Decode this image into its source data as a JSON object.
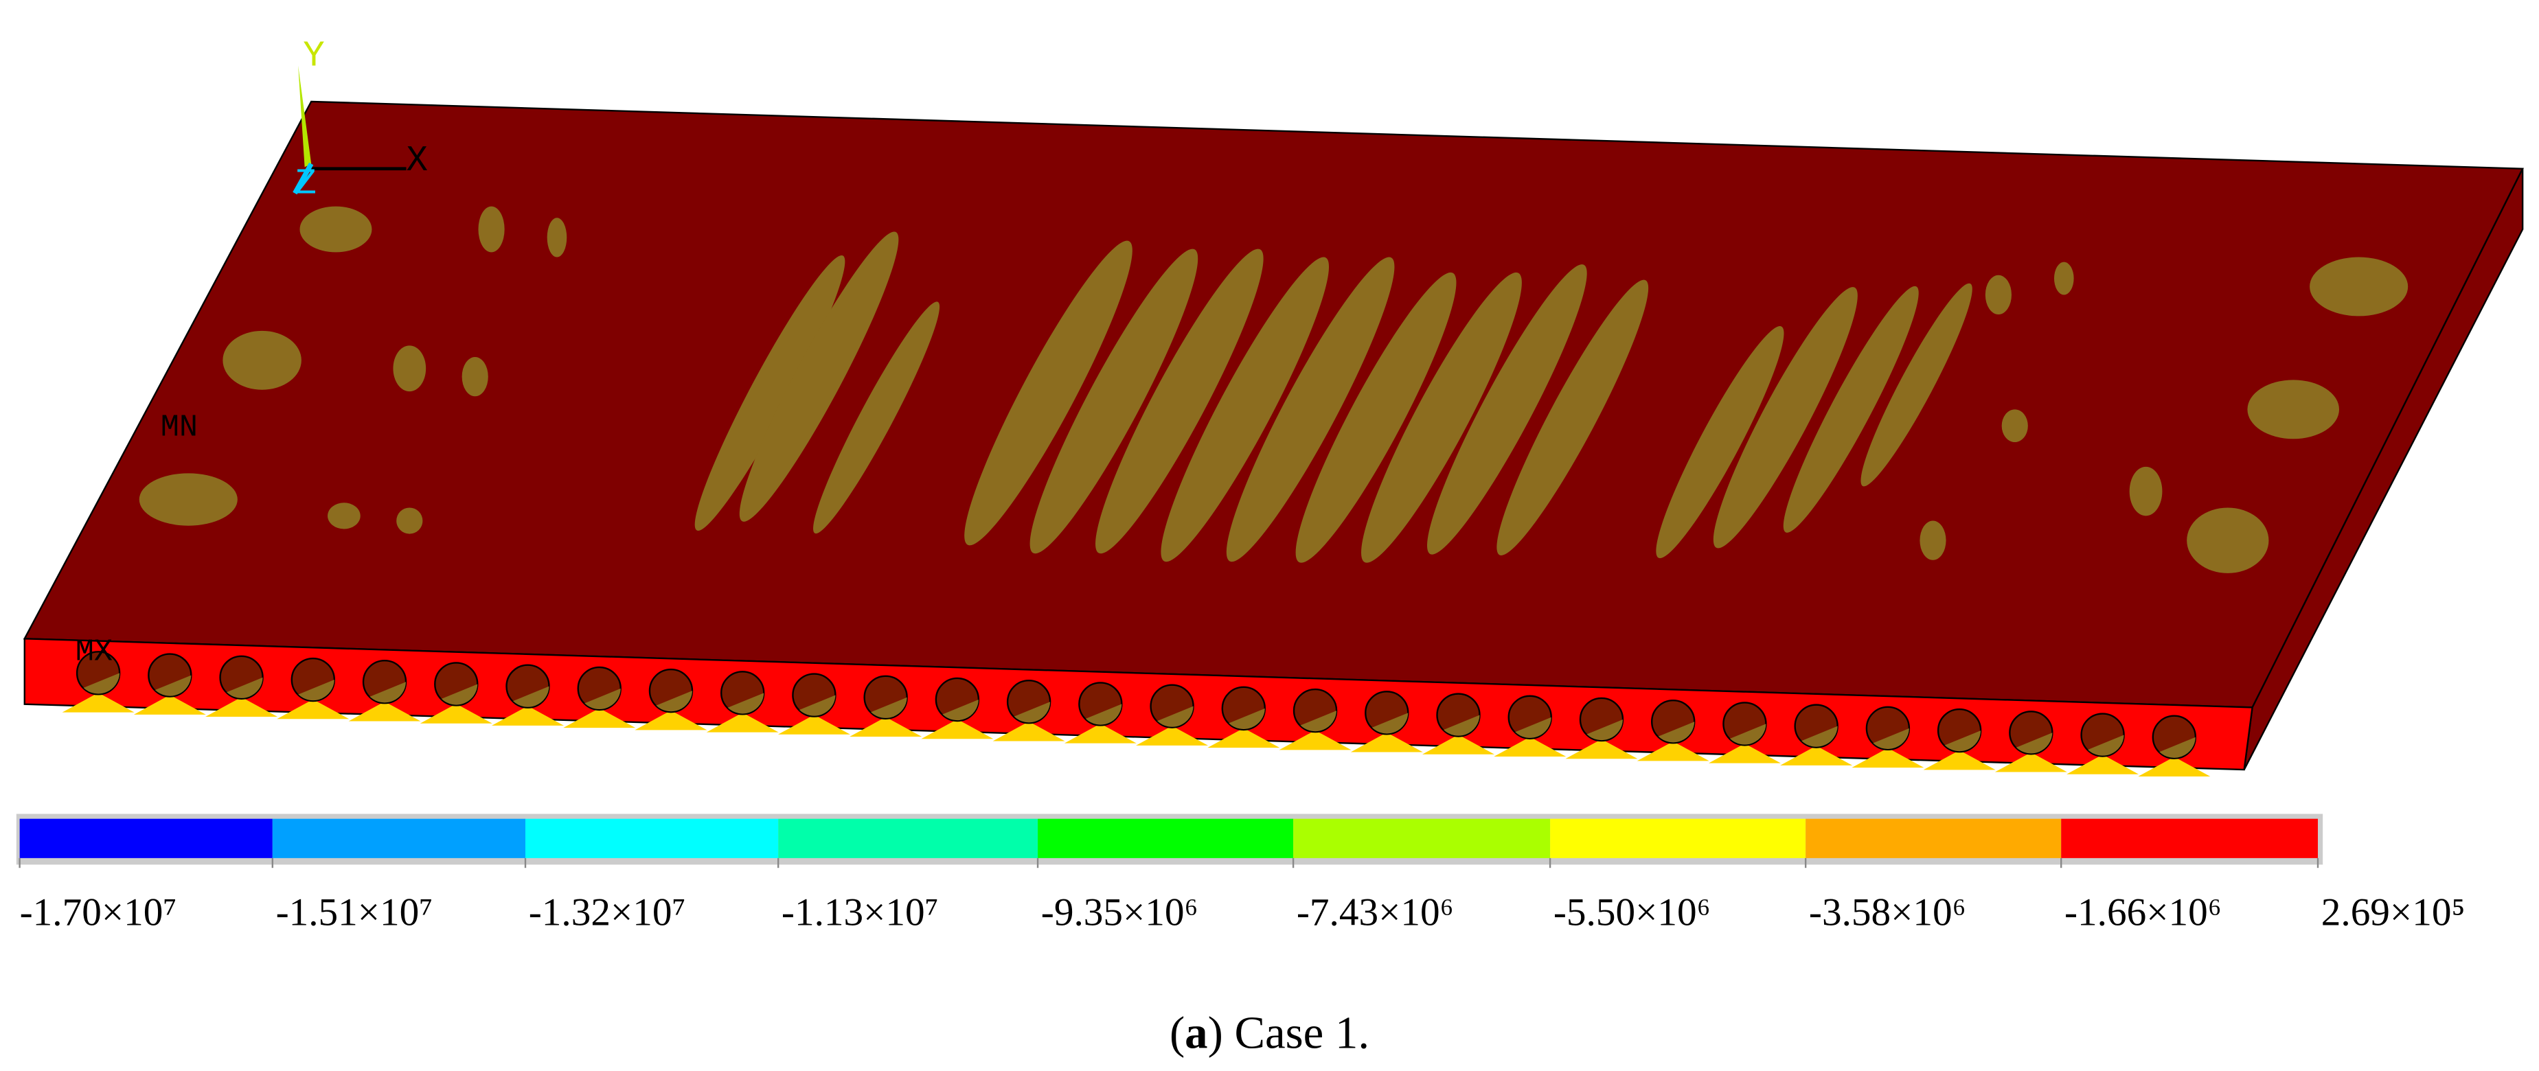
{
  "triad": {
    "y": "Y",
    "x": "X",
    "z": "Z"
  },
  "labels": {
    "min": "MN",
    "max": "MX"
  },
  "colorbar": {
    "colors": [
      "#0000ff",
      "#00a0ff",
      "#00ffff",
      "#00ffaa",
      "#00ff00",
      "#aaff00",
      "#ffff00",
      "#ffaa00",
      "#ff0000"
    ],
    "ticks": [
      {
        "value": -17000000,
        "label": "-1.70×10⁷"
      },
      {
        "value": -15100000,
        "label": "-1.51×10⁷"
      },
      {
        "value": -13200000,
        "label": "-1.32×10⁷"
      },
      {
        "value": -11300000,
        "label": "-1.13×10⁷"
      },
      {
        "value": -9350000,
        "label": "-9.35×10⁶"
      },
      {
        "value": -7430000,
        "label": "-7.43×10⁶"
      },
      {
        "value": -5500000,
        "label": "-5.50×10⁶"
      },
      {
        "value": -3580000,
        "label": "-3.58×10⁶"
      },
      {
        "value": -1660000,
        "label": "-1.66×10⁶"
      },
      {
        "value": 269000,
        "label": "2.69×10⁵"
      }
    ]
  },
  "caption": [
    "(",
    "a",
    ") Case 1."
  ]
}
